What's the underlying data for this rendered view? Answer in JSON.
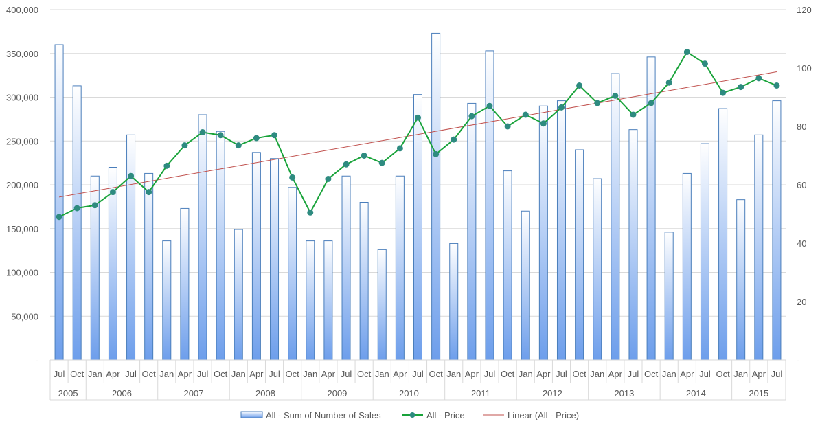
{
  "chart_data": {
    "type": "bar+line",
    "title": "",
    "quarters": [
      "Jul",
      "Oct",
      "Jan",
      "Apr",
      "Jul",
      "Oct",
      "Jan",
      "Apr",
      "Jul",
      "Oct",
      "Jan",
      "Apr",
      "Jul",
      "Oct",
      "Jan",
      "Apr",
      "Jul",
      "Oct",
      "Jan",
      "Apr",
      "Jul",
      "Oct",
      "Jan",
      "Apr",
      "Jul",
      "Oct",
      "Jan",
      "Apr",
      "Jul",
      "Oct",
      "Jan",
      "Apr",
      "Jul",
      "Oct",
      "Jan",
      "Apr",
      "Jul",
      "Oct",
      "Jan",
      "Apr",
      "Jul"
    ],
    "years": [
      {
        "label": "2005",
        "count": 2
      },
      {
        "label": "2006",
        "count": 4
      },
      {
        "label": "2007",
        "count": 4
      },
      {
        "label": "2008",
        "count": 4
      },
      {
        "label": "2009",
        "count": 4
      },
      {
        "label": "2010",
        "count": 4
      },
      {
        "label": "2011",
        "count": 4
      },
      {
        "label": "2012",
        "count": 4
      },
      {
        "label": "2013",
        "count": 4
      },
      {
        "label": "2014",
        "count": 4
      },
      {
        "label": "2015",
        "count": 3
      }
    ],
    "series": [
      {
        "name": "All - Sum of Number of Sales",
        "kind": "bar",
        "axis": "left",
        "values": [
          360000,
          313000,
          210000,
          220000,
          257000,
          213000,
          136000,
          173000,
          280000,
          261000,
          149000,
          237000,
          230000,
          197000,
          136000,
          136000,
          210000,
          180000,
          126000,
          210000,
          303000,
          373000,
          133000,
          293000,
          353000,
          216000,
          170000,
          290000,
          296000,
          240000,
          207000,
          327000,
          263000,
          346000,
          146000,
          213000,
          247000,
          287000,
          183000,
          257000,
          296000
        ]
      },
      {
        "name": "All - Price",
        "kind": "line",
        "axis": "right",
        "values": [
          49,
          52,
          53,
          57.5,
          63,
          57.5,
          66.5,
          73.5,
          78,
          77,
          73.5,
          76,
          77,
          62.5,
          50.5,
          62,
          67,
          70,
          67.5,
          72.5,
          83,
          70.5,
          75.5,
          83.5,
          87,
          80,
          84,
          81,
          86.5,
          94,
          88,
          90.5,
          84,
          88,
          95,
          105.5,
          101.5,
          91.5,
          93.5,
          96.5,
          94
        ]
      },
      {
        "name": "Linear (All - Price)",
        "kind": "trendline",
        "axis": "right",
        "start": 55.8,
        "end": 98.7
      }
    ],
    "y_left": {
      "min": 0,
      "max": 400000,
      "ticks": [
        "-",
        "50,000",
        "100,000",
        "150,000",
        "200,000",
        "250,000",
        "300,000",
        "350,000",
        "400,000"
      ]
    },
    "y_right": {
      "min": 0,
      "max": 120,
      "ticks": [
        "-",
        "20",
        "40",
        "60",
        "80",
        "100",
        "120"
      ]
    },
    "grid": true,
    "legend_position": "bottom",
    "colors": {
      "bar_fill_top": "#ffffff",
      "bar_fill_bottom": "#6d9eeb",
      "bar_stroke": "#4a7ebb",
      "line": "#19a33a",
      "marker": "#2e8b80",
      "trend": "#c0504d",
      "grid": "#d9d9d9",
      "text": "#595959"
    }
  }
}
